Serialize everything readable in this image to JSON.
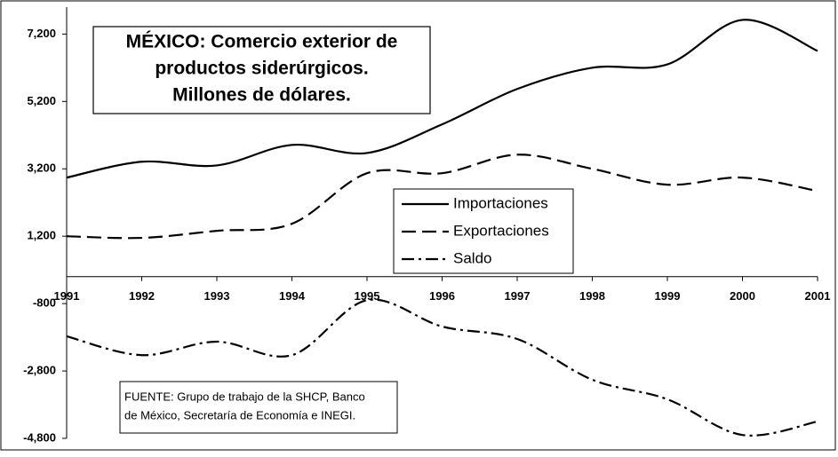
{
  "chart_data": {
    "type": "line",
    "title": [
      "MÉXICO: Comercio exterior de",
      "productos siderúrgicos.",
      "Millones de dólares."
    ],
    "note": [
      "FUENTE: Grupo de trabajo de la SHCP, Banco",
      "de México, Secretaría de Economía e INEGI."
    ],
    "x": [
      1991,
      1992,
      1993,
      1994,
      1995,
      1996,
      1997,
      1998,
      1999,
      2000,
      2001
    ],
    "xlim": [
      1991,
      2001
    ],
    "xticks": [
      1991,
      1992,
      1993,
      1994,
      1995,
      1996,
      1997,
      1998,
      1999,
      2000,
      2001
    ],
    "ylim": [
      -4800,
      8000
    ],
    "yticks": [
      {
        "value": 7200,
        "label": "7,200"
      },
      {
        "value": 5200,
        "label": "5,200"
      },
      {
        "value": 3200,
        "label": "3,200"
      },
      {
        "value": 1200,
        "label": "1,200"
      },
      {
        "value": -800,
        "label": "-800"
      },
      {
        "value": -2800,
        "label": "-2,800"
      },
      {
        "value": -4800,
        "label": "-4,800"
      }
    ],
    "grid": false,
    "series": [
      {
        "name": "Importaciones",
        "color": "#000000",
        "dash": "solid",
        "values": [
          2940,
          3410,
          3300,
          3910,
          3670,
          4520,
          5570,
          6200,
          6300,
          7620,
          6700
        ]
      },
      {
        "name": "Exportaciones",
        "color": "#000000",
        "dash": "dashed",
        "values": [
          1200,
          1150,
          1360,
          1570,
          3070,
          3070,
          3620,
          3200,
          2730,
          2940,
          2540
        ]
      },
      {
        "name": "Saldo",
        "color": "#000000",
        "dash": "dashdot",
        "values": [
          -1770,
          -2330,
          -1930,
          -2330,
          -700,
          -1480,
          -1850,
          -3060,
          -3640,
          -4700,
          -4300
        ]
      }
    ]
  }
}
